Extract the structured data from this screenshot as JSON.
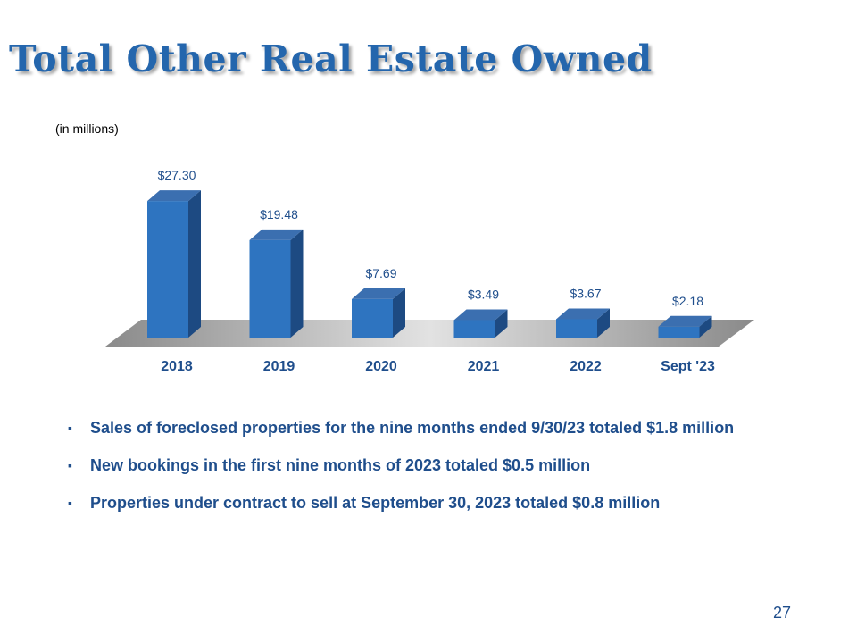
{
  "slide": {
    "title": "Total Other Real Estate Owned",
    "units_note": "(in millions)",
    "page_number": "27"
  },
  "colors": {
    "title": "#2466ad",
    "bar_front": "#2e74c0",
    "bar_top": "#3b6fb0",
    "bar_side": "#1d4a82",
    "text": "#1f4e8c"
  },
  "chart_data": {
    "type": "bar",
    "title": "",
    "xlabel": "",
    "ylabel": "",
    "ylim": [
      0,
      30
    ],
    "grid": false,
    "legend": "none",
    "categories": [
      "2018",
      "2019",
      "2020",
      "2021",
      "2022",
      "Sept '23"
    ],
    "values": [
      27.3,
      19.48,
      7.69,
      3.49,
      3.67,
      2.18
    ],
    "data_labels": [
      "$27.30",
      "$19.48",
      "$7.69",
      "$3.49",
      "$3.67",
      "$2.18"
    ]
  },
  "bullets": [
    "Sales of foreclosed properties for the nine months ended 9/30/23 totaled $1.8 million",
    "New bookings in the first nine months of 2023 totaled $0.5 million",
    "Properties under contract to sell at September 30, 2023 totaled $0.8 million"
  ]
}
